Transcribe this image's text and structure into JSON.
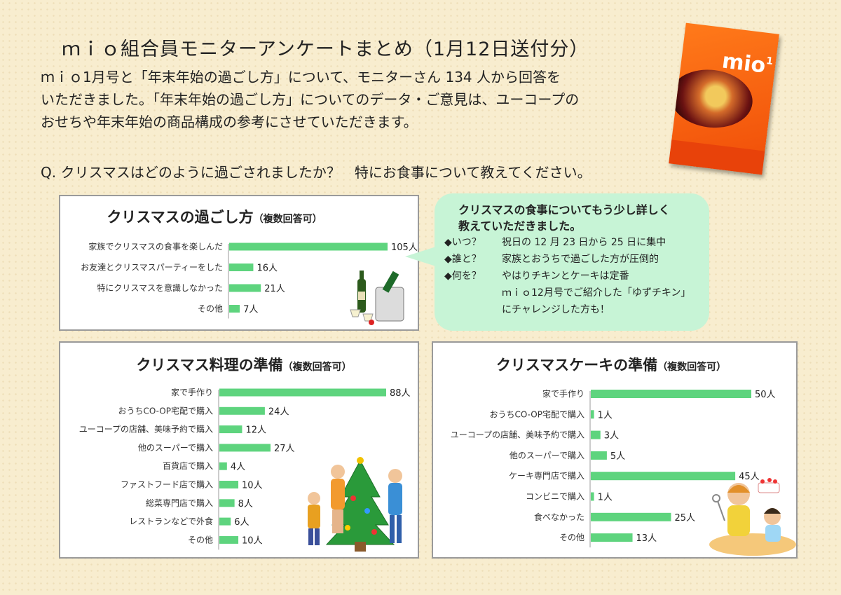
{
  "header": {
    "title": "ｍｉｏ組合員モニターアンケートまとめ（1月12日送付分）",
    "intro": [
      "ｍｉｏ1月号と「年末年始の過ごし方」について、モニターさん 134 人から回答を",
      "いただきました。「年末年始の過ごし方」についてのデータ・ご意見は、ユーコープの",
      "おせちや年末年始の商品構成の参考にさせていただきます。"
    ],
    "question": "Q.  クリスマスはどのように過ごされましたか？　特にお食事について教えてください。"
  },
  "magazine": {
    "logo": "mio",
    "issue": "1"
  },
  "bubble": {
    "heading_lines": [
      "クリスマスの食事についてもう少し詳しく",
      "教えていただきました。"
    ],
    "rows": [
      {
        "key": "◆いつ？",
        "value": "祝日の 12 月 23 日から 25 日に集中"
      },
      {
        "key": "◆誰と？",
        "value": "家族とおうちで過ごした方が圧倒的"
      },
      {
        "key": "◆何を？",
        "value": "やはりチキンとケーキは定番"
      }
    ],
    "cont": [
      "ｍｉｏ12月号でご紹介した「ゆずチキン」",
      "にチャレンジした方も！"
    ]
  },
  "colors": {
    "bar": "#5ed47e",
    "bubble": "#c7f4d6",
    "background": "#f8edcf"
  },
  "chart_data": [
    {
      "type": "bar",
      "orientation": "horizontal",
      "title": "クリスマスの過ごし方",
      "subtitle": "（複数回答可）",
      "categories": [
        "家族でクリスマスの食事を楽しんだ",
        "お友達とクリスマスパーティーをした",
        "特にクリスマスを意識しなかった",
        "その他"
      ],
      "values": [
        105,
        16,
        21,
        7
      ],
      "value_labels": [
        "105人",
        "16人",
        "21人",
        "7人"
      ],
      "xlim": [
        0,
        105
      ],
      "grid": false
    },
    {
      "type": "bar",
      "orientation": "horizontal",
      "title": "クリスマス料理の準備",
      "subtitle": "（複数回答可）",
      "categories": [
        "家で手作り",
        "おうちCO-OP宅配で購入",
        "ユーコープの店舗、美味予約で購入",
        "他のスーパーで購入",
        "百貨店で購入",
        "ファストフード店で購入",
        "総菜専門店で購入",
        "レストランなどで外食",
        "その他"
      ],
      "values": [
        88,
        24,
        12,
        27,
        4,
        10,
        8,
        6,
        10
      ],
      "value_labels": [
        "88人",
        "24人",
        "12人",
        "27人",
        "4人",
        "10人",
        "8人",
        "6人",
        "10人"
      ],
      "xlim": [
        0,
        88
      ],
      "grid": false
    },
    {
      "type": "bar",
      "orientation": "horizontal",
      "title": "クリスマスケーキの準備",
      "subtitle": "（複数回答可）",
      "categories": [
        "家で手作り",
        "おうちCO-OP宅配で購入",
        "ユーコープの店舗、美味予約で購入",
        "他のスーパーで購入",
        "ケーキ専門店で購入",
        "コンビニで購入",
        "食べなかった",
        "その他"
      ],
      "values": [
        50,
        1,
        3,
        5,
        45,
        1,
        25,
        13
      ],
      "value_labels": [
        "50人",
        "1人",
        "3人",
        "5人",
        "45人",
        "1人",
        "25人",
        "13人"
      ],
      "xlim": [
        0,
        50
      ],
      "grid": false
    }
  ]
}
